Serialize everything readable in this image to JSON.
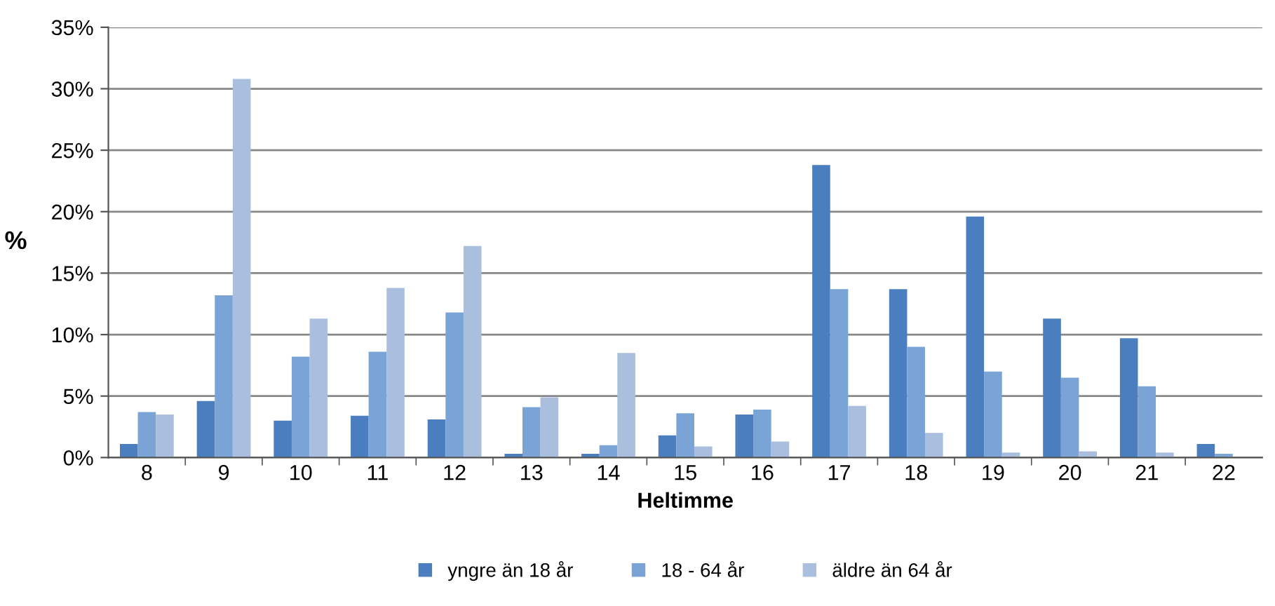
{
  "chart_data": {
    "type": "bar",
    "xlabel": "Heltimme",
    "ylabel": "%",
    "categories": [
      "8",
      "9",
      "10",
      "11",
      "12",
      "13",
      "14",
      "15",
      "16",
      "17",
      "18",
      "19",
      "20",
      "21",
      "22"
    ],
    "series": [
      {
        "name": "yngre än 18 år",
        "color": "#4a7ebf",
        "values": [
          1.1,
          4.6,
          3.0,
          3.4,
          3.1,
          0.3,
          0.3,
          1.8,
          3.5,
          23.8,
          13.7,
          19.6,
          11.3,
          9.7,
          1.1
        ]
      },
      {
        "name": "18 - 64 år",
        "color": "#7aa3d6",
        "values": [
          3.7,
          13.2,
          8.2,
          8.6,
          11.8,
          4.1,
          1.0,
          3.6,
          3.9,
          13.7,
          9.0,
          7.0,
          6.5,
          5.8,
          0.3
        ]
      },
      {
        "name": "äldre än 64 år",
        "color": "#a9bfdd",
        "values": [
          3.5,
          30.8,
          11.3,
          13.8,
          17.2,
          4.9,
          8.5,
          0.9,
          1.3,
          4.2,
          2.0,
          0.4,
          0.5,
          0.4,
          0
        ]
      }
    ],
    "ylim": [
      0,
      35
    ],
    "yticks": [
      {
        "value": 0,
        "label": "0%"
      },
      {
        "value": 5,
        "label": "5%"
      },
      {
        "value": 10,
        "label": "10%"
      },
      {
        "value": 15,
        "label": "15%"
      },
      {
        "value": 20,
        "label": "20%"
      },
      {
        "value": 25,
        "label": "25%"
      },
      {
        "value": 30,
        "label": "30%"
      },
      {
        "value": 35,
        "label": "35%"
      }
    ],
    "grid": "y",
    "legend": "bottom"
  }
}
